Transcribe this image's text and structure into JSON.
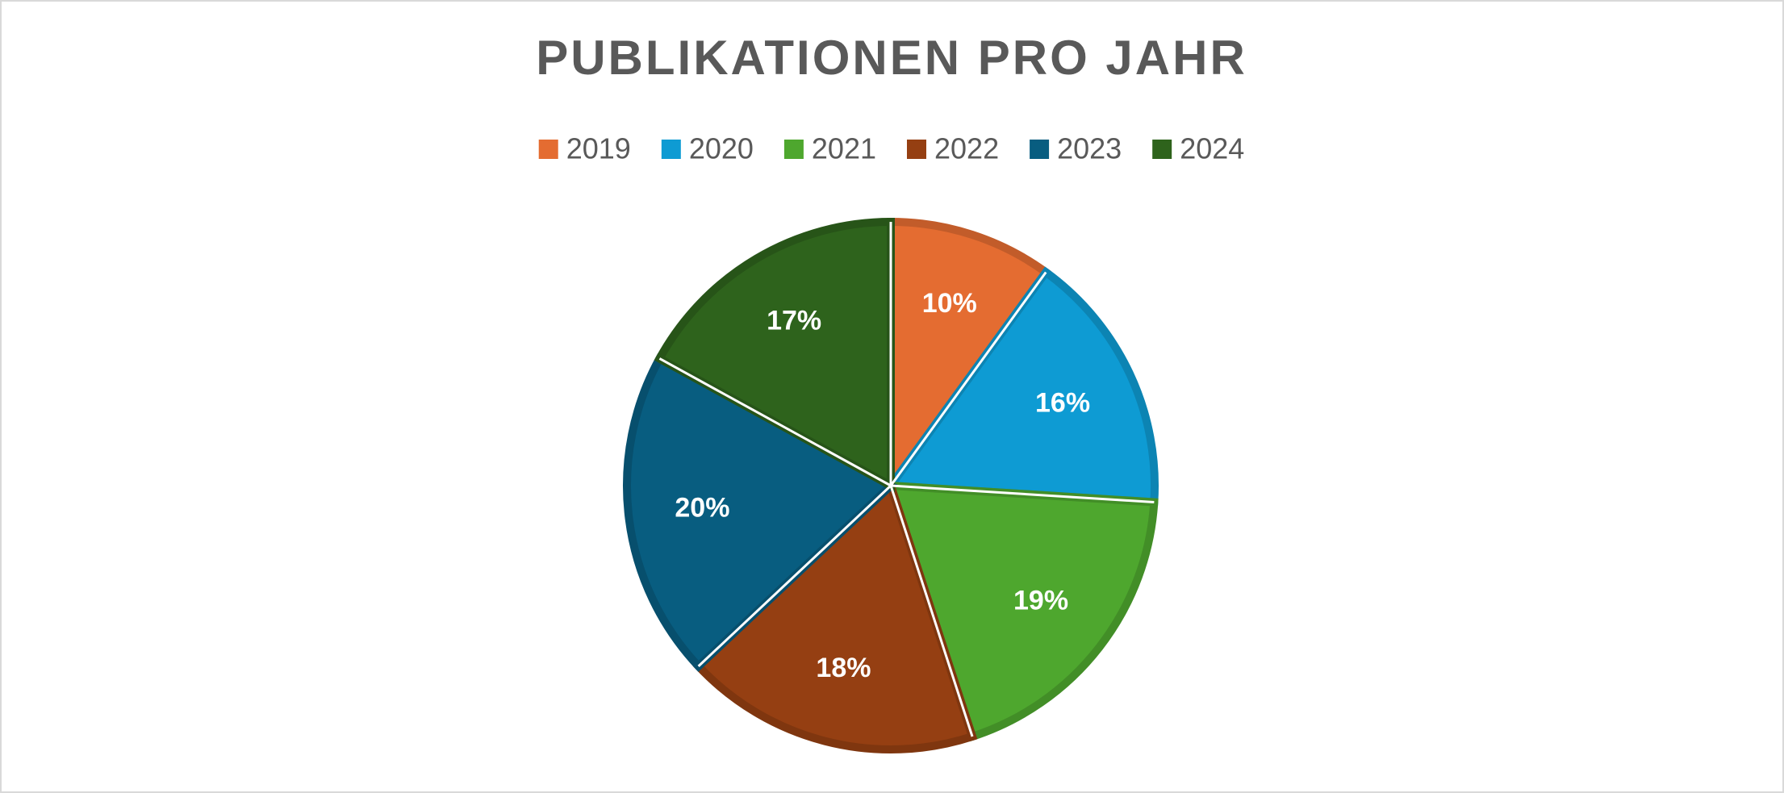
{
  "chart_data": {
    "type": "pie",
    "title": "PUBLIKATIONEN PRO JAHR",
    "categories": [
      "2019",
      "2020",
      "2021",
      "2022",
      "2023",
      "2024"
    ],
    "values": [
      10,
      16,
      19,
      18,
      20,
      17
    ],
    "value_labels": [
      "10%",
      "16%",
      "19%",
      "18%",
      "20%",
      "17%"
    ],
    "colors": [
      "#e46c31",
      "#0e9bd3",
      "#4ea72e",
      "#953f12",
      "#085d80",
      "#2e631c"
    ],
    "legend": "top"
  }
}
